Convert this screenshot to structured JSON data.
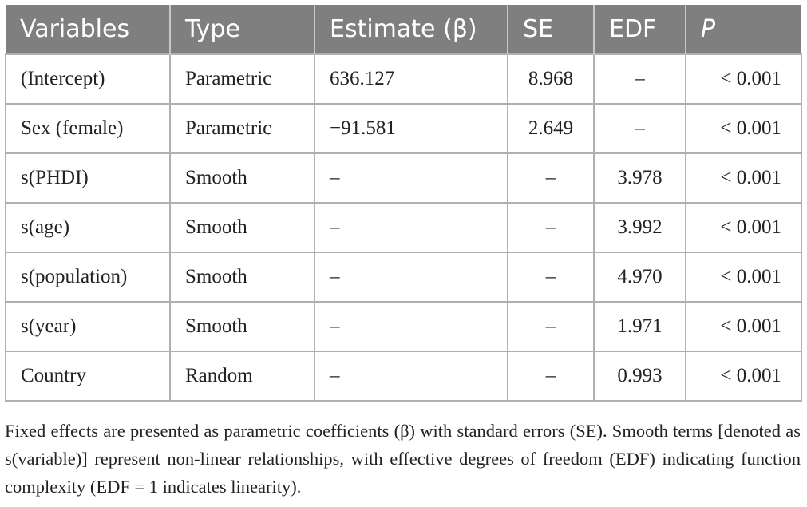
{
  "table": {
    "header": [
      "Variables",
      "Type",
      "Estimate (β)",
      "SE",
      "EDF",
      "P"
    ],
    "rows": [
      [
        "(Intercept)",
        "Parametric",
        "636.127",
        "8.968",
        "–",
        "< 0.001"
      ],
      [
        "Sex (female)",
        "Parametric",
        "−91.581",
        "2.649",
        "–",
        "< 0.001"
      ],
      [
        "s(PHDI)",
        "Smooth",
        "–",
        "–",
        "3.978",
        "< 0.001"
      ],
      [
        "s(age)",
        "Smooth",
        "–",
        "–",
        "3.992",
        "< 0.001"
      ],
      [
        "s(population)",
        "Smooth",
        "–",
        "–",
        "4.970",
        "< 0.001"
      ],
      [
        "s(year)",
        "Smooth",
        "–",
        "–",
        "1.971",
        "< 0.001"
      ],
      [
        "Country",
        "Random",
        "–",
        "–",
        "0.993",
        "< 0.001"
      ]
    ]
  },
  "caption": "Fixed effects are presented as parametric coefficients (β) with standard errors (SE). Smooth terms [denoted as s(variable)] represent non-linear relationships, with effective degrees of freedom (EDF) indicating function complexity (EDF = 1 indicates linearity)."
}
